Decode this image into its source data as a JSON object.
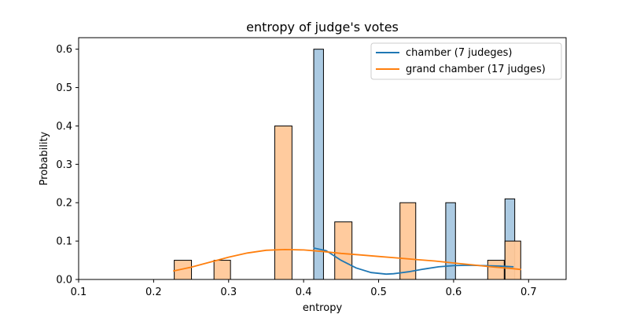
{
  "chart_data": {
    "type": "bar",
    "title": "entropy of judge's votes",
    "xlabel": "entropy",
    "ylabel": "Probability",
    "xlim": [
      0.1,
      0.75
    ],
    "ylim": [
      0,
      0.63
    ],
    "xticks": [
      "0.1",
      "0.2",
      "0.3",
      "0.4",
      "0.5",
      "0.6",
      "0.7"
    ],
    "xtick_values": [
      0.1,
      0.2,
      0.3,
      0.4,
      0.5,
      0.6,
      0.7
    ],
    "yticks": [
      "0.0",
      "0.1",
      "0.2",
      "0.3",
      "0.4",
      "0.5",
      "0.6"
    ],
    "ytick_values": [
      0,
      0.1,
      0.2,
      0.3,
      0.4,
      0.5,
      0.6
    ],
    "legend_placement": "top-right",
    "grid": false,
    "series": [
      {
        "name": "chamber (7 judeges)",
        "color": "#1f77b4",
        "bar_fill": "#a6c7e0",
        "bars": [
          {
            "x0": 0.4135,
            "x1": 0.4265,
            "value": 0.6
          },
          {
            "x0": 0.5895,
            "x1": 0.6025,
            "value": 0.2
          },
          {
            "x0": 0.6685,
            "x1": 0.6815,
            "value": 0.21
          }
        ],
        "kde": {
          "x": [
            0.413,
            0.43,
            0.45,
            0.47,
            0.49,
            0.51,
            0.52,
            0.54,
            0.56,
            0.58,
            0.6,
            0.62,
            0.64,
            0.66,
            0.68
          ],
          "y": [
            0.082,
            0.075,
            0.05,
            0.03,
            0.018,
            0.014,
            0.015,
            0.02,
            0.027,
            0.033,
            0.036,
            0.037,
            0.036,
            0.035,
            0.033
          ]
        }
      },
      {
        "name": "grand chamber (17 judges)",
        "color": "#ff7f0e",
        "bar_fill": "#ffc899",
        "bars": [
          {
            "x0": 0.2275,
            "x1": 0.2505,
            "value": 0.05
          },
          {
            "x0": 0.2805,
            "x1": 0.3025,
            "value": 0.05
          },
          {
            "x0": 0.3615,
            "x1": 0.3845,
            "value": 0.4
          },
          {
            "x0": 0.4415,
            "x1": 0.4645,
            "value": 0.15
          },
          {
            "x0": 0.5285,
            "x1": 0.5495,
            "value": 0.2
          },
          {
            "x0": 0.6455,
            "x1": 0.6675,
            "value": 0.05
          },
          {
            "x0": 0.6685,
            "x1": 0.6895,
            "value": 0.1
          }
        ],
        "kde": {
          "x": [
            0.226,
            0.25,
            0.275,
            0.3,
            0.325,
            0.35,
            0.375,
            0.4,
            0.425,
            0.45,
            0.475,
            0.5,
            0.525,
            0.55,
            0.575,
            0.6,
            0.625,
            0.65,
            0.675,
            0.69
          ],
          "y": [
            0.022,
            0.032,
            0.045,
            0.058,
            0.069,
            0.076,
            0.078,
            0.077,
            0.073,
            0.068,
            0.064,
            0.06,
            0.056,
            0.052,
            0.048,
            0.043,
            0.038,
            0.033,
            0.029,
            0.026
          ]
        }
      }
    ]
  }
}
